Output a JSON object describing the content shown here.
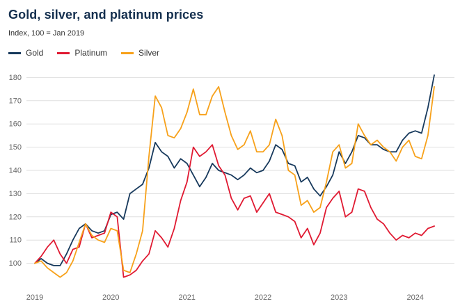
{
  "chart_data": {
    "type": "line",
    "title": "Gold, silver, and platinum prices",
    "subtitle": "Index, 100 = Jan 2019",
    "x_unit": "month",
    "x_range": [
      "2019-01",
      "2024-04"
    ],
    "x_ticks": [
      {
        "label": "2019",
        "index": 0
      },
      {
        "label": "2020",
        "index": 12
      },
      {
        "label": "2021",
        "index": 24
      },
      {
        "label": "2022",
        "index": 36
      },
      {
        "label": "2023",
        "index": 48
      },
      {
        "label": "2024",
        "index": 60
      }
    ],
    "y_ticks": [
      100,
      110,
      120,
      130,
      140,
      150,
      160,
      170,
      180
    ],
    "ylim": [
      90,
      184
    ],
    "grid": "horizontal",
    "legend_position": "top-left",
    "colors": {
      "gold": "#17395c",
      "platinum": "#e01a32",
      "silver": "#f7a11a",
      "gridline": "#dfdfdf",
      "tick_text": "#666666"
    },
    "series": [
      {
        "name": "Gold",
        "color": "#17395c",
        "values": [
          100,
          102,
          100,
          99,
          99,
          104,
          110,
          115,
          117,
          114,
          113,
          114,
          121,
          122,
          119,
          130,
          132,
          134,
          141,
          152,
          148,
          146,
          141,
          145,
          143,
          138,
          133,
          137,
          143,
          140,
          139,
          138,
          136,
          138,
          141,
          139,
          140,
          144,
          151,
          149,
          143,
          142,
          135,
          137,
          132,
          129,
          133,
          138,
          148,
          143,
          148,
          155,
          154,
          151,
          151,
          149,
          148,
          148,
          153,
          156,
          157,
          156,
          167,
          181
        ]
      },
      {
        "name": "Platinum",
        "color": "#e01a32",
        "values": [
          100,
          103,
          107,
          110,
          104,
          100,
          106,
          107,
          117,
          111,
          112,
          113,
          122,
          120,
          94,
          95,
          97,
          101,
          104,
          114,
          111,
          107,
          115,
          127,
          135,
          150,
          146,
          148,
          151,
          142,
          138,
          128,
          123,
          128,
          129,
          122,
          126,
          130,
          122,
          121,
          120,
          118,
          111,
          115,
          108,
          113,
          124,
          128,
          131,
          120,
          122,
          132,
          131,
          124,
          119,
          117,
          113,
          110,
          112,
          111,
          113,
          112,
          115,
          116
        ]
      },
      {
        "name": "Silver",
        "color": "#f7a11a",
        "values": [
          100,
          101,
          98,
          96,
          94,
          96,
          101,
          109,
          117,
          112,
          110,
          109,
          115,
          114,
          97,
          96,
          104,
          114,
          146,
          172,
          167,
          155,
          154,
          158,
          165,
          175,
          164,
          164,
          172,
          176,
          165,
          155,
          149,
          151,
          157,
          148,
          148,
          151,
          162,
          155,
          140,
          138,
          125,
          127,
          122,
          124,
          135,
          148,
          151,
          141,
          143,
          160,
          155,
          151,
          153,
          150,
          148,
          144,
          150,
          153,
          146,
          145,
          155,
          176
        ]
      }
    ]
  }
}
